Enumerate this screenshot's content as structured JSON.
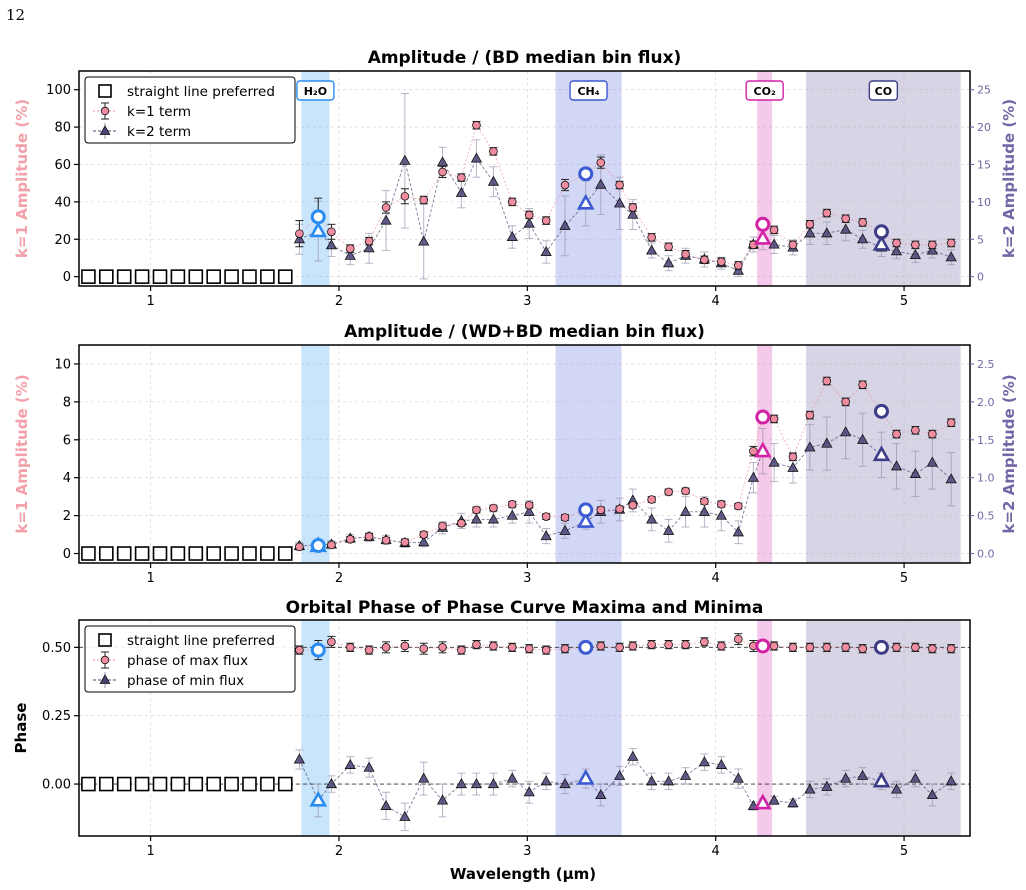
{
  "page_number": "12",
  "xlabel": "Wavelength (μm)",
  "xlim": [
    0.62,
    5.35
  ],
  "xticks": [
    1,
    2,
    3,
    4,
    5
  ],
  "colors": {
    "k1": "#f08ca0",
    "k2": "#4a4275",
    "k1_axis": "#f4a0aa",
    "k2_axis": "#7466a6",
    "h2o": "#2a8cf0",
    "ch4": "#3c5ad2",
    "co2": "#d223a5",
    "co": "#3c3c87"
  },
  "bands": [
    {
      "label": "H₂O",
      "x0": 1.8,
      "x1": 1.95,
      "fill": "#bfe0fb",
      "edge": "#2a8cf0"
    },
    {
      "label": "CH₄",
      "x0": 3.15,
      "x1": 3.5,
      "fill": "#c9d0f3",
      "edge": "#3c5ad2"
    },
    {
      "label": "CO₂",
      "x0": 4.22,
      "x1": 4.3,
      "fill": "#f3c0e6",
      "edge": "#d223a5"
    },
    {
      "label": "CO",
      "x0": 4.48,
      "x1": 5.3,
      "fill": "#cfcde0",
      "edge": "#3c3c87"
    }
  ],
  "straight_line_x": [
    0.67,
    0.765,
    0.86,
    0.955,
    1.05,
    1.145,
    1.24,
    1.335,
    1.43,
    1.525,
    1.62,
    1.715
  ],
  "wavelengths": [
    1.79,
    1.89,
    1.96,
    2.06,
    2.16,
    2.25,
    2.35,
    2.45,
    2.55,
    2.65,
    2.73,
    2.82,
    2.92,
    3.01,
    3.1,
    3.2,
    3.31,
    3.39,
    3.49,
    3.56,
    3.66,
    3.75,
    3.84,
    3.94,
    4.03,
    4.12,
    4.2,
    4.25,
    4.31,
    4.41,
    4.5,
    4.59,
    4.69,
    4.78,
    4.88,
    4.96,
    5.06,
    5.15,
    5.25
  ],
  "chart_data": [
    {
      "type": "scatter",
      "title": "Amplitude / (BD median bin flux)",
      "ylabel": "k=1 Amplitude (%)",
      "ylabel_right": "k=2 Amplitude (%)",
      "ylim": [
        -5,
        110
      ],
      "yticks": [
        0,
        20,
        40,
        60,
        80,
        100
      ],
      "ylim_right": [
        -1.25,
        27.5
      ],
      "yticks_right": [
        0,
        5,
        10,
        15,
        20,
        25
      ],
      "legend": [
        "straight line preferred",
        "k=1 term",
        "k=2 term"
      ],
      "legend_position": "upper-left",
      "series": [
        {
          "name": "k=1 term",
          "axis": "left",
          "values": [
            23,
            32,
            24,
            15,
            19,
            37,
            43,
            41,
            56,
            53,
            81,
            67,
            40,
            33,
            30,
            49,
            55,
            61,
            49,
            37,
            21,
            16,
            12,
            9,
            8,
            6,
            17,
            28,
            25,
            17,
            28,
            34,
            31,
            29,
            24,
            18,
            17,
            17,
            18
          ],
          "errors": [
            7,
            10,
            4,
            2,
            2,
            3,
            4,
            2,
            3,
            2,
            2,
            2,
            2,
            2,
            2,
            3,
            3,
            3,
            2,
            2,
            2,
            2,
            2,
            2,
            2,
            2,
            2,
            3,
            2,
            2,
            2,
            2,
            2,
            2,
            2,
            2,
            2,
            2,
            2
          ]
        },
        {
          "name": "k=2 term",
          "axis": "right",
          "values": [
            5,
            6.1,
            4.2,
            2.8,
            3.8,
            7.5,
            15.5,
            4.7,
            15.3,
            11.2,
            15.8,
            12.7,
            5.3,
            7.1,
            3.3,
            6.8,
            9.8,
            12.3,
            9.8,
            8.3,
            3.5,
            1.8,
            2.8,
            2.3,
            1.8,
            0.8,
            4.3,
            5.1,
            4.3,
            3.9,
            5.8,
            5.8,
            6.3,
            5.0,
            3.9,
            3.4,
            2.9,
            3.5,
            2.6
          ],
          "errors": [
            2,
            4,
            1.5,
            1.2,
            2,
            4,
            9,
            5,
            2,
            2,
            2.5,
            2,
            1.5,
            2,
            1.5,
            4,
            3,
            4,
            3.5,
            2,
            1,
            1,
            1,
            1,
            0.8,
            0.8,
            1,
            1.5,
            1.2,
            1,
            1.5,
            1.5,
            1.5,
            1.2,
            1.2,
            1,
            1,
            1,
            1
          ]
        }
      ],
      "band_highlights": [
        {
          "band": "H₂O",
          "x": 1.89,
          "k1": 32,
          "k2": 6.1
        },
        {
          "band": "CH₄",
          "x": 3.31,
          "k1": 55,
          "k2": 9.8
        },
        {
          "band": "CO₂",
          "x": 4.25,
          "k1": 28,
          "k2": 5.1
        },
        {
          "band": "CO",
          "x": 4.88,
          "k1": 24,
          "k2": 4.3
        }
      ]
    },
    {
      "type": "scatter",
      "title": "Amplitude / (WD+BD median bin flux)",
      "ylabel": "k=1 Amplitude (%)",
      "ylabel_right": "k=2 Amplitude (%)",
      "ylim": [
        -0.5,
        11
      ],
      "yticks": [
        0,
        2,
        4,
        6,
        8,
        10
      ],
      "ylim_right": [
        -0.125,
        2.75
      ],
      "yticks_right": [
        0.0,
        0.5,
        1.0,
        1.5,
        2.0,
        2.5
      ],
      "series": [
        {
          "name": "k=1 term",
          "axis": "left",
          "values": [
            0.35,
            0.42,
            0.45,
            0.75,
            0.9,
            0.7,
            0.6,
            1.0,
            1.45,
            1.6,
            2.3,
            2.4,
            2.6,
            2.55,
            1.95,
            1.9,
            2.3,
            2.3,
            2.35,
            2.55,
            2.85,
            3.25,
            3.3,
            2.75,
            2.6,
            2.5,
            5.4,
            7.2,
            7.1,
            5.1,
            7.3,
            9.1,
            8.0,
            8.9,
            7.5,
            6.3,
            6.5,
            6.3,
            6.9
          ],
          "errors": [
            0.15,
            0.2,
            0.15,
            0.15,
            0.15,
            0.15,
            0.15,
            0.15,
            0.15,
            0.15,
            0.15,
            0.15,
            0.15,
            0.15,
            0.15,
            0.15,
            0.15,
            0.15,
            0.15,
            0.15,
            0.15,
            0.15,
            0.15,
            0.15,
            0.15,
            0.15,
            0.25,
            0.3,
            0.2,
            0.2,
            0.2,
            0.2,
            0.2,
            0.2,
            0.2,
            0.2,
            0.2,
            0.2,
            0.2
          ]
        },
        {
          "name": "k=2 term",
          "axis": "right",
          "values": [
            0.1,
            0.12,
            0.12,
            0.2,
            0.22,
            0.18,
            0.14,
            0.15,
            0.34,
            0.43,
            0.45,
            0.45,
            0.5,
            0.55,
            0.23,
            0.3,
            0.42,
            0.55,
            0.58,
            0.7,
            0.45,
            0.3,
            0.55,
            0.55,
            0.5,
            0.28,
            1.0,
            1.35,
            1.2,
            1.13,
            1.4,
            1.45,
            1.6,
            1.5,
            1.3,
            1.15,
            1.05,
            1.2,
            0.98
          ],
          "errors": [
            0.05,
            0.05,
            0.05,
            0.05,
            0.06,
            0.06,
            0.06,
            0.06,
            0.08,
            0.1,
            0.1,
            0.1,
            0.1,
            0.15,
            0.1,
            0.1,
            0.1,
            0.15,
            0.15,
            0.15,
            0.15,
            0.15,
            0.2,
            0.2,
            0.2,
            0.15,
            0.2,
            0.3,
            0.25,
            0.2,
            0.3,
            0.35,
            0.35,
            0.35,
            0.3,
            0.3,
            0.3,
            0.35,
            0.35
          ]
        }
      ],
      "band_highlights": [
        {
          "band": "H₂O",
          "x": 1.89,
          "k1": 0.42,
          "k2": 0.1
        },
        {
          "band": "CH₄",
          "x": 3.31,
          "k1": 2.3,
          "k2": 0.42
        },
        {
          "band": "CO₂",
          "x": 4.25,
          "k1": 7.2,
          "k2": 1.35
        },
        {
          "band": "CO",
          "x": 4.88,
          "k1": 7.5,
          "k2": 1.3
        }
      ]
    },
    {
      "type": "scatter",
      "title": "Orbital Phase of Phase Curve Maxima and Minima",
      "ylabel": "Phase",
      "ylim": [
        -0.19,
        0.6
      ],
      "yticks": [
        0.0,
        0.25,
        0.5
      ],
      "ytick_labels": [
        "0.00",
        "0.25",
        "0.50"
      ],
      "reference_lines": [
        0.5,
        0.0
      ],
      "legend": [
        "straight line preferred",
        "phase of max flux",
        "phase of min flux"
      ],
      "legend_position": "upper-left",
      "series": [
        {
          "name": "phase of max flux",
          "values": [
            0.49,
            0.49,
            0.52,
            0.5,
            0.49,
            0.5,
            0.505,
            0.495,
            0.5,
            0.49,
            0.51,
            0.505,
            0.5,
            0.495,
            0.49,
            0.495,
            0.5,
            0.505,
            0.5,
            0.505,
            0.51,
            0.51,
            0.51,
            0.52,
            0.505,
            0.53,
            0.505,
            0.505,
            0.505,
            0.5,
            0.5,
            0.5,
            0.5,
            0.495,
            0.5,
            0.5,
            0.5,
            0.495,
            0.495
          ],
          "errors": [
            0.015,
            0.035,
            0.02,
            0.015,
            0.015,
            0.02,
            0.02,
            0.02,
            0.02,
            0.015,
            0.015,
            0.015,
            0.015,
            0.015,
            0.015,
            0.015,
            0.015,
            0.015,
            0.015,
            0.015,
            0.015,
            0.015,
            0.015,
            0.015,
            0.015,
            0.02,
            0.02,
            0.02,
            0.015,
            0.015,
            0.015,
            0.015,
            0.015,
            0.015,
            0.015,
            0.015,
            0.015,
            0.015,
            0.015
          ]
        },
        {
          "name": "phase of min flux",
          "values": [
            0.09,
            -0.06,
            0.0,
            0.07,
            0.06,
            -0.08,
            -0.12,
            0.02,
            -0.06,
            0.0,
            0.0,
            0.0,
            0.02,
            -0.03,
            0.01,
            0.0,
            0.02,
            -0.04,
            0.03,
            0.1,
            0.01,
            0.01,
            0.03,
            0.08,
            0.07,
            0.02,
            -0.08,
            -0.07,
            -0.06,
            -0.07,
            -0.02,
            -0.01,
            0.02,
            0.03,
            0.01,
            -0.02,
            0.02,
            -0.04,
            0.01
          ],
          "errors": [
            0.035,
            0.06,
            0.03,
            0.03,
            0.035,
            0.05,
            0.05,
            0.06,
            0.06,
            0.04,
            0.04,
            0.04,
            0.03,
            0.04,
            0.03,
            0.035,
            0.035,
            0.04,
            0.035,
            0.03,
            0.03,
            0.03,
            0.03,
            0.03,
            0.03,
            0.035,
            0.015,
            0.015,
            0.015,
            0.015,
            0.03,
            0.03,
            0.03,
            0.03,
            0.03,
            0.03,
            0.03,
            0.04,
            0.03
          ]
        }
      ],
      "band_highlights": [
        {
          "band": "H₂O",
          "x": 1.89,
          "max": 0.49,
          "min": -0.06
        },
        {
          "band": "CH₄",
          "x": 3.31,
          "max": 0.5,
          "min": 0.02
        },
        {
          "band": "CO₂",
          "x": 4.25,
          "max": 0.505,
          "min": -0.07
        },
        {
          "band": "CO",
          "x": 4.88,
          "max": 0.5,
          "min": 0.01
        }
      ]
    }
  ]
}
